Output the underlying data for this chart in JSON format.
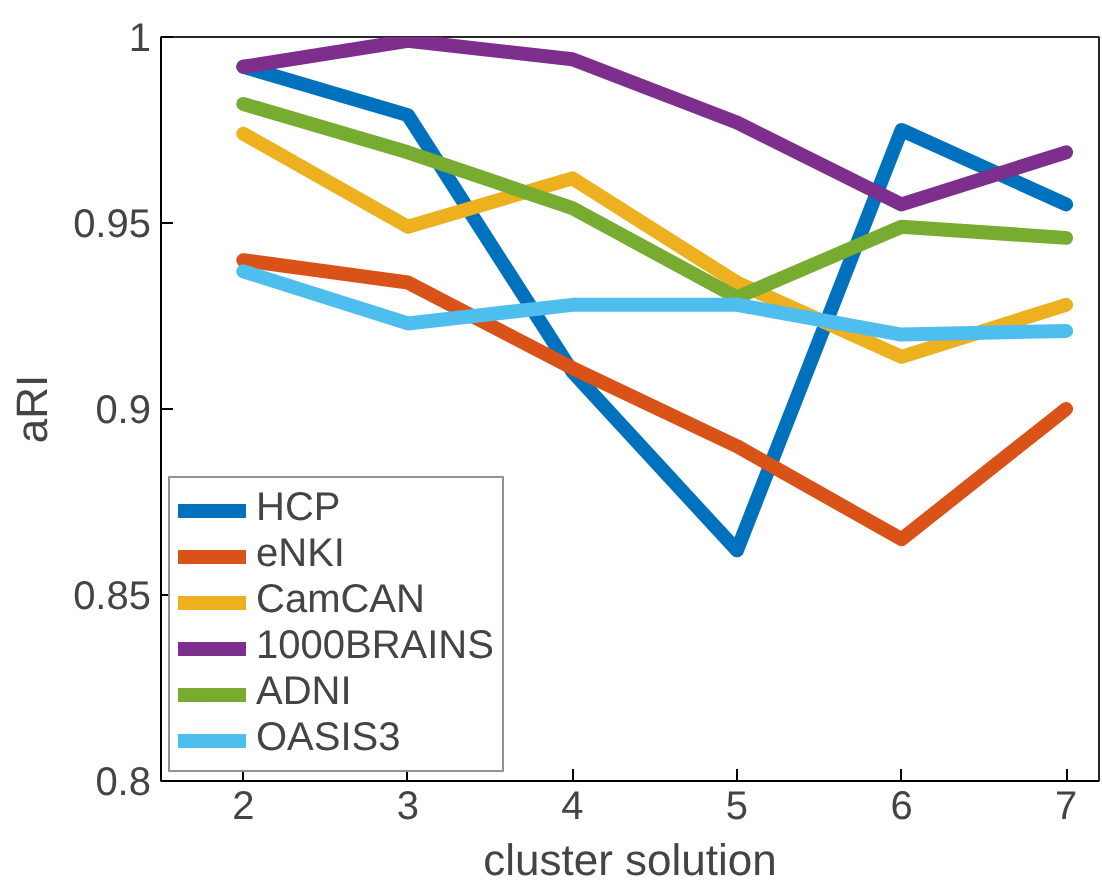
{
  "chart_data": {
    "type": "line",
    "xlabel": "cluster solution",
    "ylabel": "aRI",
    "x": [
      2,
      3,
      4,
      5,
      6,
      7
    ],
    "xlim": [
      1.5,
      7.2
    ],
    "xticks": [
      2,
      3,
      4,
      5,
      6,
      7
    ],
    "ylim": [
      0.8,
      1
    ],
    "yticks": [
      0.8,
      0.85,
      0.9,
      0.95,
      1
    ],
    "grid": false,
    "legend": "bottom left",
    "marker": "none",
    "line_style": "solid",
    "series": [
      {
        "name": "HCP",
        "color": "#0072bd",
        "values": [
          0.992,
          0.979,
          0.91,
          0.862,
          0.975,
          0.955
        ]
      },
      {
        "name": "eNKI",
        "color": "#d95319",
        "values": [
          0.94,
          0.934,
          0.911,
          0.89,
          0.865,
          0.9
        ]
      },
      {
        "name": "CamCAN",
        "color": "#edb120",
        "values": [
          0.974,
          0.949,
          0.962,
          0.934,
          0.914,
          0.928
        ]
      },
      {
        "name": "1000BRAINS",
        "color": "#7e2f8e",
        "values": [
          0.992,
          0.999,
          0.994,
          0.977,
          0.955,
          0.969
        ]
      },
      {
        "name": "ADNI",
        "color": "#77ac30",
        "values": [
          0.982,
          0.969,
          0.954,
          0.93,
          0.949,
          0.946
        ]
      },
      {
        "name": "OASIS3",
        "color": "#4dbeee",
        "values": [
          0.937,
          0.923,
          0.928,
          0.928,
          0.92,
          0.921
        ]
      }
    ]
  }
}
